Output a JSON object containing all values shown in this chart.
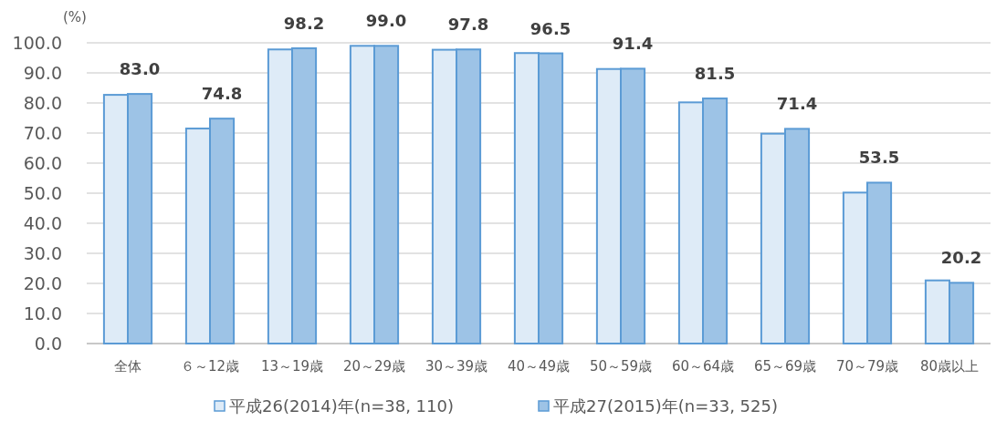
{
  "chart_data": {
    "type": "bar",
    "ylabel": "(%)",
    "categories": [
      "全体",
      "６～12歳",
      "13～19歳",
      "20～29歳",
      "30～39歳",
      "40～49歳",
      "50～59歳",
      "60～64歳",
      "65～69歳",
      "70～79歳",
      "80歳以上"
    ],
    "series": [
      {
        "name": "平成26(2014)年(n=38, 110)",
        "color": "#deebf7",
        "values": [
          82.7,
          71.5,
          97.8,
          99.0,
          97.7,
          96.6,
          91.3,
          80.2,
          69.8,
          50.2,
          21.0
        ]
      },
      {
        "name": "平成27(2015)年(n=33, 525)",
        "color": "#9dc3e6",
        "values": [
          83.0,
          74.8,
          98.2,
          99.0,
          97.8,
          96.5,
          91.4,
          81.5,
          71.4,
          53.5,
          20.2
        ],
        "value_labels": [
          "83.0",
          "74.8",
          "98.2",
          "99.0",
          "97.8",
          "96.5",
          "91.4",
          "81.5",
          "71.4",
          "53.5",
          "20.2"
        ]
      }
    ],
    "ylim": [
      0,
      100
    ],
    "yticks": [
      {
        "value": 0,
        "label": "0.0"
      },
      {
        "value": 10,
        "label": "10.0"
      },
      {
        "value": 20,
        "label": "20.0"
      },
      {
        "value": 30,
        "label": "30.0"
      },
      {
        "value": 40,
        "label": "40.0"
      },
      {
        "value": 50,
        "label": "50.0"
      },
      {
        "value": 60,
        "label": "60.0"
      },
      {
        "value": 70,
        "label": "70.0"
      },
      {
        "value": 80,
        "label": "80.0"
      },
      {
        "value": 90,
        "label": "90.0"
      },
      {
        "value": 100,
        "label": "100.0"
      }
    ],
    "grid": "y",
    "legend": "bottom"
  }
}
